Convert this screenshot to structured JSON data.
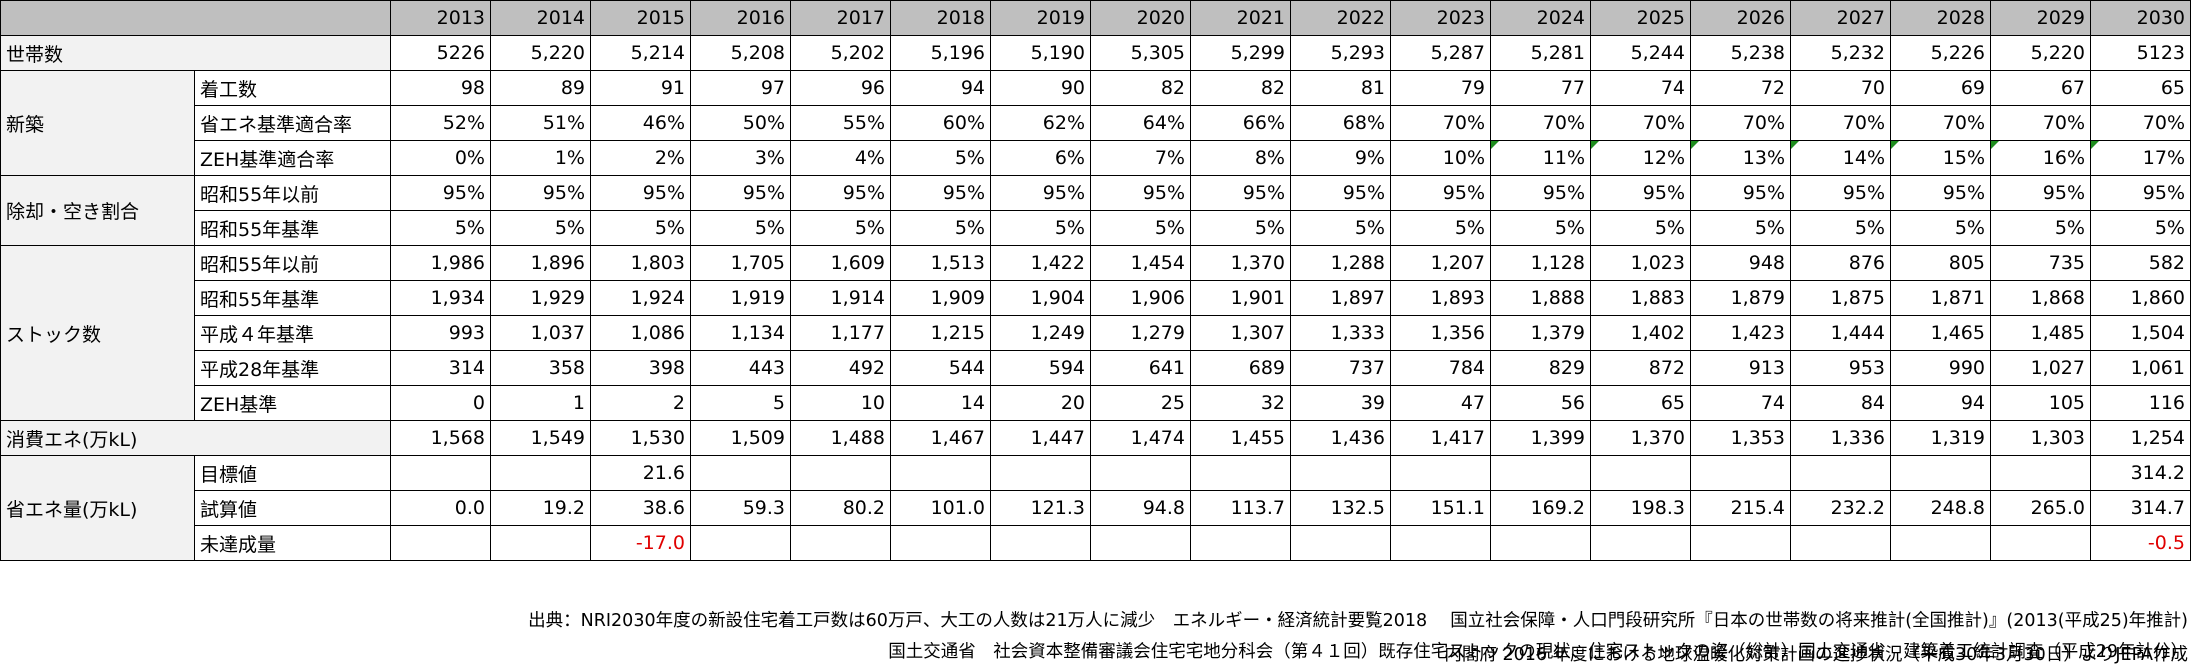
{
  "years": [
    "2013",
    "2014",
    "2015",
    "2016",
    "2017",
    "2018",
    "2019",
    "2020",
    "2021",
    "2022",
    "2023",
    "2024",
    "2025",
    "2026",
    "2027",
    "2028",
    "2029",
    "2030"
  ],
  "households": {
    "label": "世帯数",
    "values": [
      "5226",
      "5,220",
      "5,214",
      "5,208",
      "5,202",
      "5,196",
      "5,190",
      "5,305",
      "5,299",
      "5,293",
      "5,287",
      "5,281",
      "5,244",
      "5,238",
      "5,232",
      "5,226",
      "5,220",
      "5123"
    ]
  },
  "new_build": {
    "label": "新築",
    "rows": [
      {
        "label": "着工数",
        "values": [
          "98",
          "89",
          "91",
          "97",
          "96",
          "94",
          "90",
          "82",
          "82",
          "81",
          "79",
          "77",
          "74",
          "72",
          "70",
          "69",
          "67",
          "65"
        ]
      },
      {
        "label": "省エネ基準適合率",
        "values": [
          "52%",
          "51%",
          "46%",
          "50%",
          "55%",
          "60%",
          "62%",
          "64%",
          "66%",
          "68%",
          "70%",
          "70%",
          "70%",
          "70%",
          "70%",
          "70%",
          "70%",
          "70%"
        ]
      },
      {
        "label": "ZEH基準適合率",
        "values": [
          "0%",
          "1%",
          "2%",
          "3%",
          "4%",
          "5%",
          "6%",
          "7%",
          "8%",
          "9%",
          "10%",
          "11%",
          "12%",
          "13%",
          "14%",
          "15%",
          "16%",
          "17%"
        ]
      }
    ]
  },
  "removal": {
    "label": "除却・空き割合",
    "rows": [
      {
        "label": "昭和55年以前",
        "values": [
          "95%",
          "95%",
          "95%",
          "95%",
          "95%",
          "95%",
          "95%",
          "95%",
          "95%",
          "95%",
          "95%",
          "95%",
          "95%",
          "95%",
          "95%",
          "95%",
          "95%",
          "95%"
        ]
      },
      {
        "label": "昭和55年基準",
        "values": [
          "5%",
          "5%",
          "5%",
          "5%",
          "5%",
          "5%",
          "5%",
          "5%",
          "5%",
          "5%",
          "5%",
          "5%",
          "5%",
          "5%",
          "5%",
          "5%",
          "5%",
          "5%"
        ]
      }
    ]
  },
  "stock": {
    "label": "ストック数",
    "rows": [
      {
        "label": "昭和55年以前",
        "values": [
          "1,986",
          "1,896",
          "1,803",
          "1,705",
          "1,609",
          "1,513",
          "1,422",
          "1,454",
          "1,370",
          "1,288",
          "1,207",
          "1,128",
          "1,023",
          "948",
          "876",
          "805",
          "735",
          "582"
        ]
      },
      {
        "label": "昭和55年基準",
        "values": [
          "1,934",
          "1,929",
          "1,924",
          "1,919",
          "1,914",
          "1,909",
          "1,904",
          "1,906",
          "1,901",
          "1,897",
          "1,893",
          "1,888",
          "1,883",
          "1,879",
          "1,875",
          "1,871",
          "1,868",
          "1,860"
        ]
      },
      {
        "label": "平成４年基準",
        "values": [
          "993",
          "1,037",
          "1,086",
          "1,134",
          "1,177",
          "1,215",
          "1,249",
          "1,279",
          "1,307",
          "1,333",
          "1,356",
          "1,379",
          "1,402",
          "1,423",
          "1,444",
          "1,465",
          "1,485",
          "1,504"
        ]
      },
      {
        "label": "平成28年基準",
        "values": [
          "314",
          "358",
          "398",
          "443",
          "492",
          "544",
          "594",
          "641",
          "689",
          "737",
          "784",
          "829",
          "872",
          "913",
          "953",
          "990",
          "1,027",
          "1,061"
        ]
      },
      {
        "label": "ZEH基準",
        "values": [
          "0",
          "1",
          "2",
          "5",
          "10",
          "14",
          "20",
          "25",
          "32",
          "39",
          "47",
          "56",
          "65",
          "74",
          "84",
          "94",
          "105",
          "116"
        ]
      }
    ]
  },
  "consumption": {
    "label": "消費エネ(万kL)",
    "values": [
      "1,568",
      "1,549",
      "1,530",
      "1,509",
      "1,488",
      "1,467",
      "1,447",
      "1,474",
      "1,455",
      "1,436",
      "1,417",
      "1,399",
      "1,370",
      "1,353",
      "1,336",
      "1,319",
      "1,303",
      "1,254"
    ]
  },
  "savings": {
    "label": "省エネ量(万kL)",
    "rows": [
      {
        "label": "目標値",
        "values": [
          "",
          "",
          "21.6",
          "",
          "",
          "",
          "",
          "",
          "",
          "",
          "",
          "",
          "",
          "",
          "",
          "",
          "",
          "314.2"
        ]
      },
      {
        "label": "試算値",
        "values": [
          "0.0",
          "19.2",
          "38.6",
          "59.3",
          "80.2",
          "101.0",
          "121.3",
          "94.8",
          "113.7",
          "132.5",
          "151.1",
          "169.2",
          "198.3",
          "215.4",
          "232.2",
          "248.8",
          "265.0",
          "314.7"
        ]
      },
      {
        "label": "未達成量",
        "values": [
          "",
          "",
          "-17.0",
          "",
          "",
          "",
          "",
          "",
          "",
          "",
          "",
          "",
          "",
          "",
          "",
          "",
          "",
          "-0.5"
        ]
      }
    ]
  },
  "sources": [
    "出典：NRI2030年度の新設住宅着工戸数は60万戸、大工の人数は21万人に減少　エネルギー・経済統計要覧2018　 国立社会保障・人口門段研究所『日本の世帯数の将来推計(全国推計)』(2013(平成25)年推計)",
    "国土交通省　社会資本整備審議会住宅宅地分科会（第４１回）既存住宅ストックの現状、住宅ストックの姿（総計）国土交通省　建築着工統計調査（平成29年計分）",
    "内閣府 2016 年度における地球温暖化対策計画の進捗状況（平成30年3月30日）よりJEPA作成"
  ],
  "colors": {
    "header_bg": "#bfbfbf",
    "category_bg": "#f2f2f2",
    "negative": "#e00000",
    "indicator": "#1e8c1e"
  }
}
